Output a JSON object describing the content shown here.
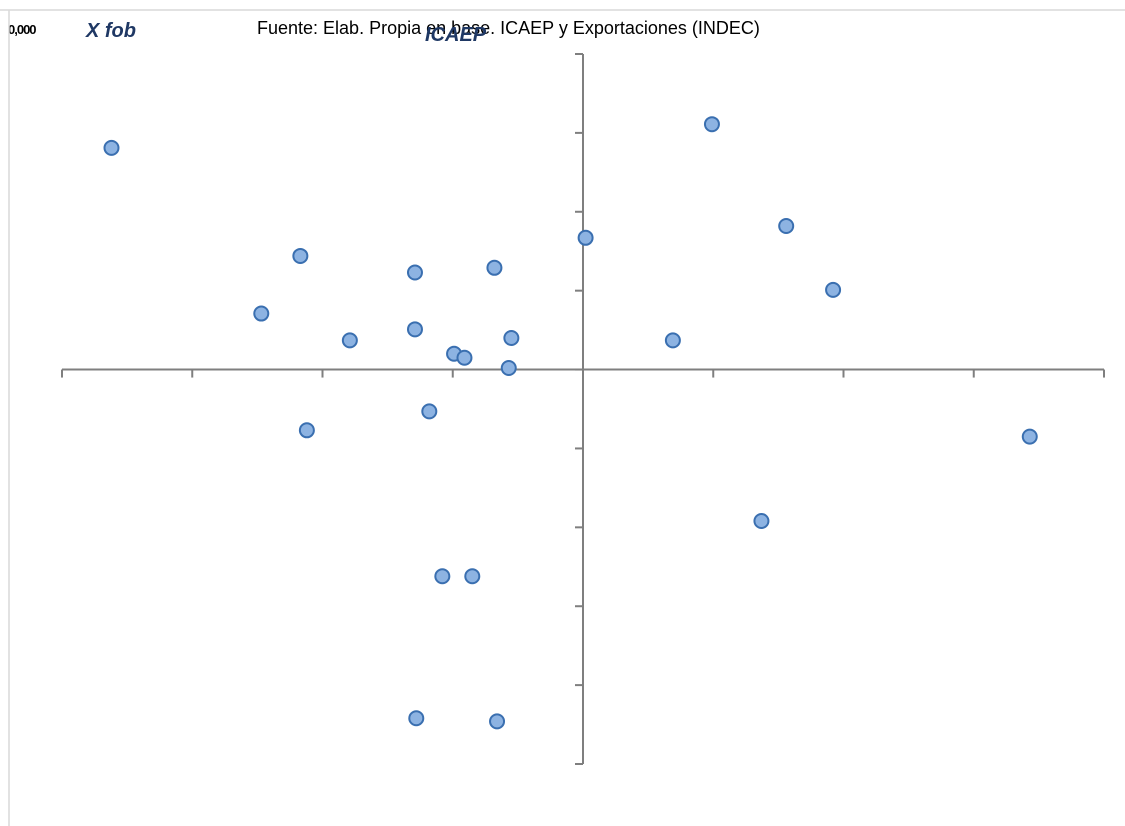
{
  "source_note": "Fuente: Elab. Propia en base. ICAEP y Exportaciones (INDEC)",
  "chart_data": {
    "type": "scatter",
    "xlabel": "X fob",
    "ylabel": "ICAEP",
    "tick_label_fragment": "0,000",
    "xlim": [
      -4,
      4
    ],
    "ylim": [
      -5,
      4
    ],
    "grid": false,
    "axes_cross_at_origin": true,
    "marker_color": "#8db3e2",
    "marker_edge_color": "#3a6fb0",
    "points": [
      {
        "x": -3.62,
        "y": 2.81
      },
      {
        "x": -2.17,
        "y": 1.44
      },
      {
        "x": -2.47,
        "y": 0.71
      },
      {
        "x": -1.79,
        "y": 0.37
      },
      {
        "x": -1.29,
        "y": 1.23
      },
      {
        "x": -1.29,
        "y": 0.51
      },
      {
        "x": -0.99,
        "y": 0.2
      },
      {
        "x": -0.91,
        "y": 0.15
      },
      {
        "x": -0.68,
        "y": 1.29
      },
      {
        "x": -0.57,
        "y": 0.02
      },
      {
        "x": -0.55,
        "y": 0.4
      },
      {
        "x": 0.02,
        "y": 1.67
      },
      {
        "x": 0.69,
        "y": 0.37
      },
      {
        "x": 0.99,
        "y": 3.11
      },
      {
        "x": 1.56,
        "y": 1.82
      },
      {
        "x": 1.92,
        "y": 1.01
      },
      {
        "x": -1.18,
        "y": -0.53
      },
      {
        "x": -2.12,
        "y": -0.77
      },
      {
        "x": 3.43,
        "y": -0.85
      },
      {
        "x": 1.37,
        "y": -1.92
      },
      {
        "x": -1.08,
        "y": -2.62
      },
      {
        "x": -0.85,
        "y": -2.62
      },
      {
        "x": -1.28,
        "y": -4.42
      },
      {
        "x": -0.66,
        "y": -4.46
      }
    ]
  }
}
